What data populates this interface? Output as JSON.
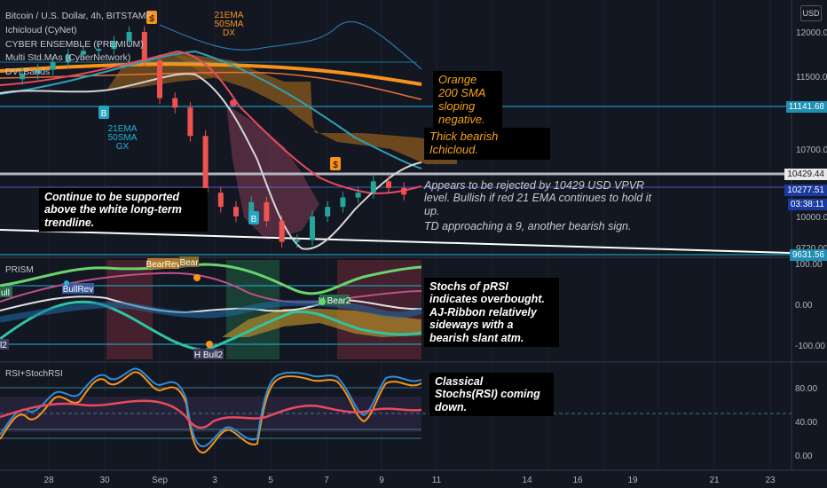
{
  "legend": {
    "symbol": "Bitcoin / U.S. Dollar, 4h, BITSTAMP",
    "ind1": "Ichicloud (CyNet)",
    "ind2": "CYBER ENSEMBLE (PREMIUM)",
    "ind3": "Multi Std.MAs (CyberNetwork)",
    "ind4": "DVI Bands"
  },
  "currency_button": "USD",
  "price_axis": [
    "12000.00",
    "11500.00",
    "10700.00",
    "10000.00",
    "9720.00"
  ],
  "price_tags": {
    "level1": "11141.68",
    "level2": "10429.44",
    "last": "10277.51",
    "timer": "03:38:11",
    "low": "9631.56"
  },
  "prism": {
    "title": "PRISM",
    "ticks": [
      "100.00",
      "0.00",
      "-100.00"
    ],
    "labels": {
      "bearrev": "BearRev",
      "bear": "Bear",
      "bullrev": "BullRev",
      "hbear2": "H Bear2",
      "hbull2": "H Bull2",
      "ull": "ull",
      "l2": "l2"
    }
  },
  "rsi": {
    "title": "RSI+StochRSI",
    "ticks": [
      "80.00",
      "40.00",
      "0.00"
    ]
  },
  "time_axis": [
    "28",
    "30",
    "Sep",
    "3",
    "5",
    "7",
    "9",
    "11",
    "14",
    "16",
    "19",
    "21",
    "23"
  ],
  "markers": {
    "ema_top": "21EMA\n50SMA\nDX",
    "ema_bottom": "21EMA\n50SMA\nGX",
    "s": "$",
    "b": "B"
  },
  "annotations": {
    "white_trend": "Continue to be supported above the white long-term trendline.",
    "orange_sma": "Orange 200 SMA sloping negative.",
    "ichicloud": "Thick bearish Ichicloud.",
    "vpvr": "Appears to be rejected by 10429 USD VPVR level. Bullish if red 21 EMA continues to hold it up.",
    "td": "TD approaching a 9, another bearish sign.",
    "stochs": "Stochs of pRSI indicates overbought. AJ-Ribbon relatively sideways with a bearish slant atm.",
    "classical": "Classical Stochs(RSI) coming down."
  },
  "chart_data": {
    "type": "line",
    "symbol": "BTCUSD",
    "interval": "4h",
    "price_axis": {
      "ticks": [
        12000,
        11500,
        10700,
        10000,
        9720
      ],
      "range": [
        9600,
        12150
      ]
    },
    "horizontal_levels": [
      11141.68,
      10429.44,
      9631.56
    ],
    "last_price": 10277.51,
    "x_ticks": [
      "28",
      "30",
      "Sep",
      "3",
      "5",
      "7",
      "9",
      "11",
      "14",
      "16",
      "19",
      "21",
      "23"
    ],
    "series": [
      {
        "values": [
          11500,
          11560,
          11600,
          11680,
          11760,
          11800,
          11820,
          11900,
          12000,
          11700,
          11300,
          11200,
          10900,
          10300,
          10150,
          10050,
          10200,
          10000,
          9780,
          9800,
          10050,
          10150,
          10250,
          10300,
          10420,
          10350,
          10280
        ]
      }
    ],
    "prism": {
      "ticks": [
        100,
        0,
        -100
      ],
      "range": [
        -115,
        115
      ]
    },
    "rsi": {
      "ticks": [
        80,
        40,
        0
      ],
      "range": [
        -5,
        100
      ]
    }
  }
}
